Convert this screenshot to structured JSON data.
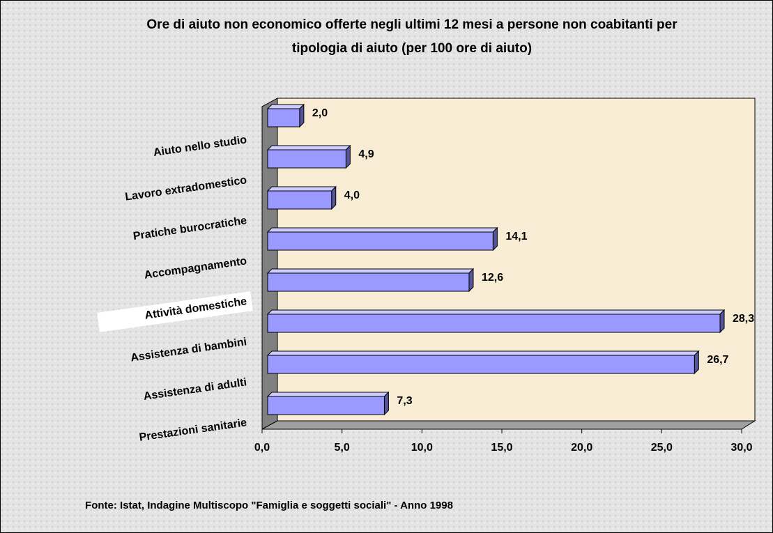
{
  "chart_data": {
    "type": "bar",
    "orientation": "horizontal",
    "title": "Ore di aiuto non economico offerte negli ultimi 12 mesi a persone non coabitanti per tipologia di aiuto (per 100 ore di aiuto)",
    "categories": [
      "Aiuto nello studio",
      "Lavoro extradomestico",
      "Pratiche burocratiche",
      "Accompagnamento",
      "Attività domestiche",
      "Assistenza di bambini",
      "Assistenza di adulti",
      "Prestazioni sanitarie"
    ],
    "values": [
      2.0,
      4.9,
      4.0,
      14.1,
      12.6,
      28.3,
      26.7,
      7.3
    ],
    "value_labels": [
      "2,0",
      "4,9",
      "4,0",
      "14,1",
      "12,6",
      "28,3",
      "26,7",
      "7,3"
    ],
    "color": "#9999ff",
    "xlim": [
      0,
      30
    ],
    "xticks": [
      {
        "value": 0,
        "label": "0,0"
      },
      {
        "value": 5,
        "label": "5,0"
      },
      {
        "value": 10,
        "label": "10,0"
      },
      {
        "value": 15,
        "label": "15,0"
      },
      {
        "value": 20,
        "label": "20,0"
      },
      {
        "value": 25,
        "label": "25,0"
      },
      {
        "value": 30,
        "label": "30,0"
      }
    ],
    "source": "Fonte: Istat, Indagine Multiscopo \"Famiglia e soggetti sociali\" - Anno 1998"
  }
}
